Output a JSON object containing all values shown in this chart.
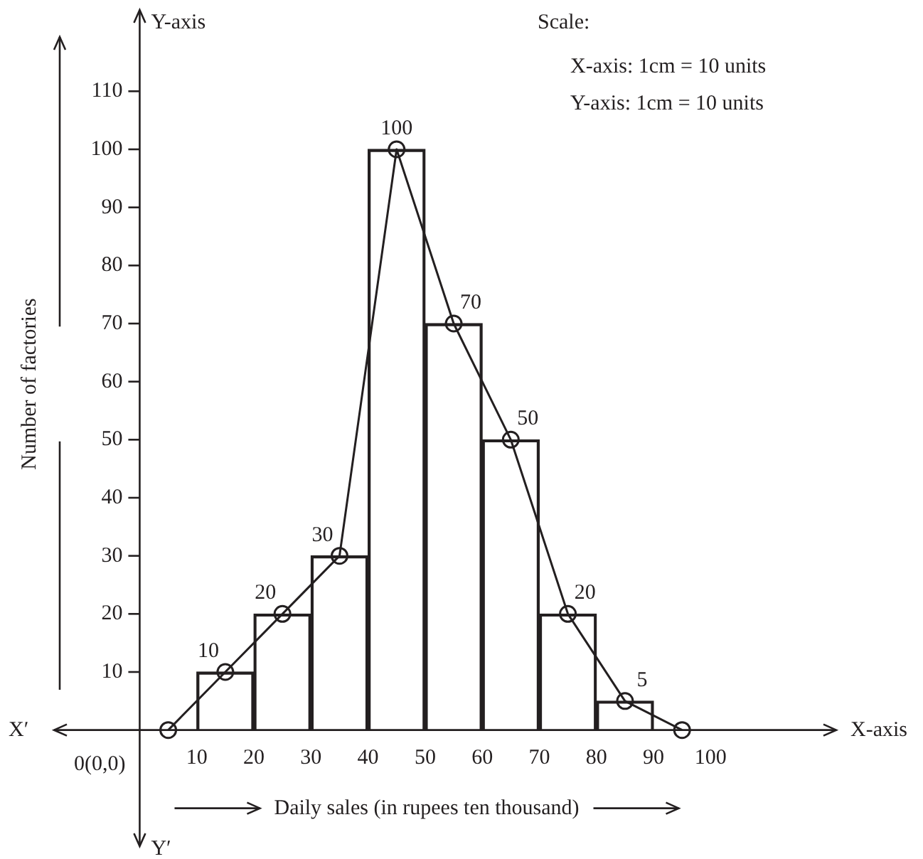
{
  "chart_data": {
    "type": "bar",
    "xlabel": "Daily sales (in rupees ten thousand)",
    "ylabel": "Number of factories",
    "series": [
      {
        "x": [
          15,
          25,
          35,
          45,
          55,
          65,
          75,
          85
        ],
        "values": [
          10,
          20,
          30,
          100,
          70,
          50,
          20,
          5
        ],
        "color": "#231f20"
      },
      {
        "type": "line",
        "x": [
          5,
          15,
          25,
          35,
          45,
          55,
          65,
          75,
          85,
          95
        ],
        "values": [
          0,
          10,
          20,
          30,
          100,
          70,
          50,
          20,
          5,
          0
        ],
        "value_labels": [
          null,
          "10",
          "20",
          "30",
          "100",
          "70",
          "50",
          "20",
          "5",
          null
        ],
        "color": "#231f20"
      }
    ],
    "marker": "circle",
    "xlim": [
      -15,
      122
    ],
    "ylim": [
      -20,
      124
    ],
    "xticks": [
      10,
      20,
      30,
      40,
      50,
      60,
      70,
      80,
      90,
      100
    ],
    "yticks": [
      10,
      20,
      30,
      40,
      50,
      60,
      70,
      80,
      90,
      100,
      110
    ],
    "grid": false,
    "legend": false,
    "annotations": [
      "Scale:",
      "X-axis: 1cm = 10 units",
      "Y-axis: 1cm = 10 units",
      "X-axis",
      "Y-axis",
      "X′",
      "Y′",
      "0(0,0)"
    ]
  }
}
